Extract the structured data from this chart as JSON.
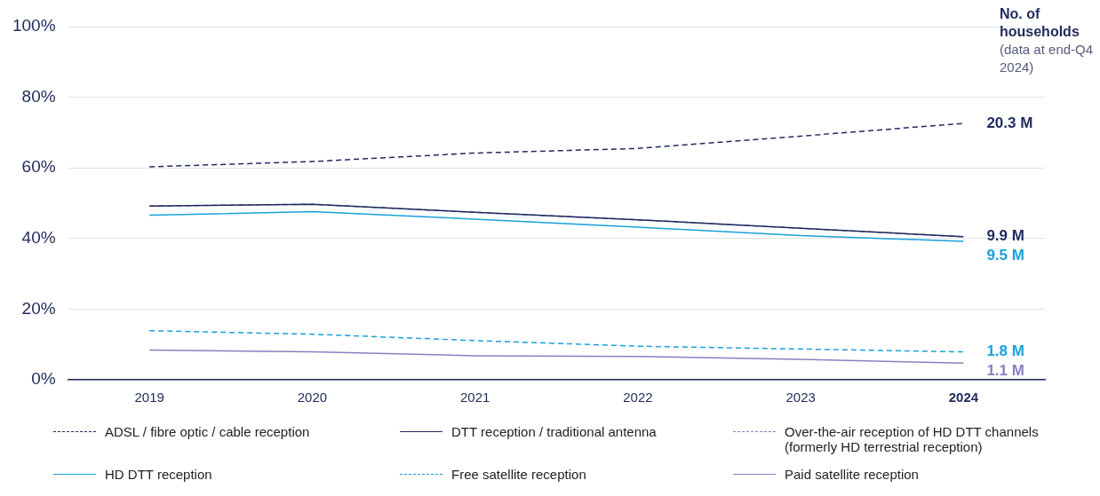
{
  "chart_data": {
    "type": "line",
    "categories": [
      "2019",
      "2020",
      "2021",
      "2022",
      "2023",
      "2024"
    ],
    "series": [
      {
        "name": "ADSL / fibre optic / cable reception",
        "color": "#1f2a5c",
        "line_style": "dashed",
        "values": [
          60.3,
          61.8,
          64.2,
          65.5,
          69,
          72.6
        ]
      },
      {
        "name": "DTT reception / traditional antenna",
        "color": "#1f2a5c",
        "line_style": "solid",
        "values": [
          49.2,
          49.7,
          47.4,
          45.3,
          42.9,
          40.5
        ]
      },
      {
        "name": "Over-the-air reception of HD DTT channels (formerly HD terrestrial reception)",
        "color": "#8b7fc0",
        "line_style": "dashed",
        "values": [
          49.2,
          49.7,
          47.4,
          45.3,
          42.9,
          40.5
        ]
      },
      {
        "name": "HD DTT reception",
        "color": "#1aa0dc",
        "line_style": "solid",
        "values": [
          46.6,
          47.6,
          45.5,
          43.2,
          40.8,
          39.2
        ]
      },
      {
        "name": "Free satellite reception",
        "color": "#1aa0dc",
        "line_style": "dashed",
        "values": [
          13.9,
          12.9,
          11.1,
          9.5,
          8.7,
          7.9
        ]
      },
      {
        "name": "Paid satellite reception",
        "color": "#8b7fc0",
        "line_style": "solid",
        "values": [
          8.4,
          7.9,
          6.8,
          6.6,
          5.8,
          4.7
        ]
      }
    ],
    "ylim": [
      0,
      100
    ],
    "yticks": [
      {
        "value": 0,
        "label": "0%"
      },
      {
        "value": 20,
        "label": "20%"
      },
      {
        "value": 40,
        "label": "40%"
      },
      {
        "value": 60,
        "label": "60%"
      },
      {
        "value": 80,
        "label": "80%"
      },
      {
        "value": 100,
        "label": "100%"
      }
    ],
    "grid": "y",
    "legend": "bottom",
    "marker": "none",
    "annotations": [
      "No. of households",
      "(data at end-Q4 2024)",
      {
        "text": "20.3 M",
        "x": "2024",
        "y": 72.6
      },
      {
        "text": "9.9 M",
        "x": "2024",
        "y": 40.5
      },
      {
        "text": "9.5 M",
        "x": "2024",
        "y": 39.2
      },
      {
        "text": "1.8 M",
        "x": "2024",
        "y": 7.9
      },
      {
        "text": "1.1 M",
        "x": "2024",
        "y": 4.7
      }
    ]
  }
}
